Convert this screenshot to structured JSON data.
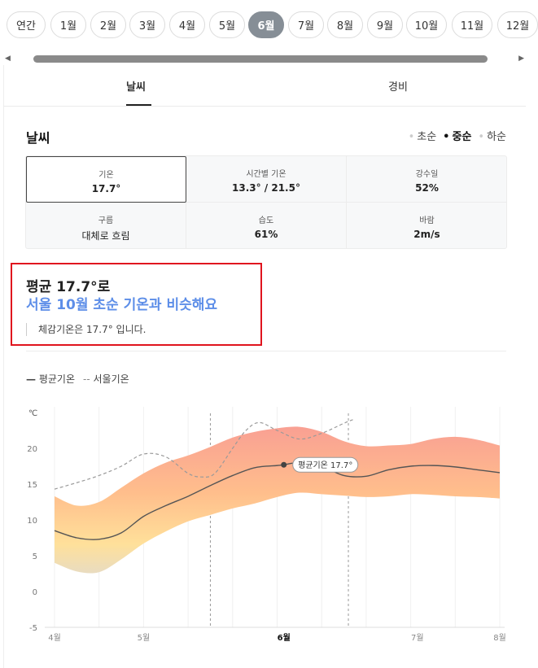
{
  "months": [
    {
      "label": "연간"
    },
    {
      "label": "1월"
    },
    {
      "label": "2월"
    },
    {
      "label": "3월"
    },
    {
      "label": "4월"
    },
    {
      "label": "5월"
    },
    {
      "label": "6월",
      "active": true
    },
    {
      "label": "7월"
    },
    {
      "label": "8월"
    },
    {
      "label": "9월"
    },
    {
      "label": "10월"
    },
    {
      "label": "11월"
    },
    {
      "label": "12월"
    }
  ],
  "section_tabs": {
    "weather": "날씨",
    "cost": "경비"
  },
  "weather": {
    "title": "날씨",
    "periods": [
      "초순",
      "중순",
      "하순"
    ],
    "selected_period": "중순",
    "stats": [
      {
        "label": "기온",
        "value": "17.7°",
        "selected": true
      },
      {
        "label": "시간별 기온",
        "value": "13.3° / 21.5°"
      },
      {
        "label": "강수일",
        "value": "52%"
      },
      {
        "label": "구름",
        "value": "대체로 흐림"
      },
      {
        "label": "습도",
        "value": "61%"
      },
      {
        "label": "바람",
        "value": "2m/s"
      }
    ]
  },
  "summary": {
    "line1": "평균 17.7°로",
    "line2": "서울 10월 초순 기온과 비슷해요",
    "feels_like": "체감기온은 17.7° 입니다."
  },
  "chart_legend": {
    "avg": "평균기온",
    "seoul": "서울기온"
  },
  "chart_data": {
    "type": "area",
    "ylabel": "℃",
    "ylim": [
      -5,
      25
    ],
    "yticks": [
      -5,
      0,
      5,
      10,
      15,
      20
    ],
    "xlim": [
      0,
      10
    ],
    "xticks": [
      {
        "x": 0,
        "label": "4월"
      },
      {
        "x": 2,
        "label": "5월"
      },
      {
        "x": 5.15,
        "label": "6월",
        "bold": true
      },
      {
        "x": 8.15,
        "label": "7월"
      },
      {
        "x": 10,
        "label": "8월"
      }
    ],
    "highlight_range": [
      3.5,
      6.6
    ],
    "series": [
      {
        "name": "평균기온",
        "x": [
          0,
          0.5,
          1,
          1.5,
          2,
          2.5,
          3,
          3.5,
          4,
          4.5,
          5,
          5.15,
          5.5,
          6,
          6.5,
          7,
          7.5,
          8,
          8.5,
          9,
          9.5,
          10
        ],
        "values": [
          8.5,
          7.5,
          7.3,
          8.2,
          10.5,
          12,
          13.3,
          14.8,
          16.2,
          17.3,
          17.6,
          17.7,
          18,
          17.5,
          16.2,
          16.1,
          17,
          17.5,
          17.6,
          17.4,
          17,
          16.6
        ]
      },
      {
        "name": "서울기온",
        "x": [
          0,
          0.5,
          1,
          1.5,
          2,
          2.5,
          3,
          3.3,
          3.6,
          4,
          4.3,
          4.6,
          5,
          5.5,
          6,
          6.5,
          6.7
        ],
        "values": [
          14.3,
          15.2,
          16.2,
          17.5,
          19.2,
          18.8,
          16.5,
          16,
          16.5,
          20,
          22.5,
          23.6,
          22.5,
          21.3,
          22.1,
          23.5,
          24
        ]
      }
    ],
    "band": {
      "x": [
        0,
        0.5,
        1,
        1.5,
        2,
        2.5,
        3,
        3.5,
        4,
        4.5,
        5,
        5.5,
        6,
        6.5,
        7,
        7.5,
        8,
        8.5,
        9,
        9.5,
        10
      ],
      "upper": [
        13.3,
        12,
        12.5,
        14.5,
        16.5,
        18,
        19,
        20.2,
        21.5,
        22.3,
        22.8,
        23,
        22.3,
        21,
        20.3,
        20.4,
        20.6,
        21.3,
        21.6,
        21.2,
        20.4
      ],
      "lower": [
        4,
        2.8,
        2.7,
        4.5,
        6.7,
        8.4,
        9.8,
        10.7,
        11.6,
        12.3,
        13.2,
        13.8,
        13.6,
        13.4,
        13.2,
        13.3,
        13.6,
        13.5,
        13.3,
        13.2,
        13
      ]
    },
    "annotation": {
      "x": 5.15,
      "value": 17.7,
      "label": "평균기온 17.7°"
    }
  },
  "colors": {
    "active_month": "#868e96",
    "highlight_text": "#5d8ee8",
    "summary_border": "#e0141e"
  }
}
